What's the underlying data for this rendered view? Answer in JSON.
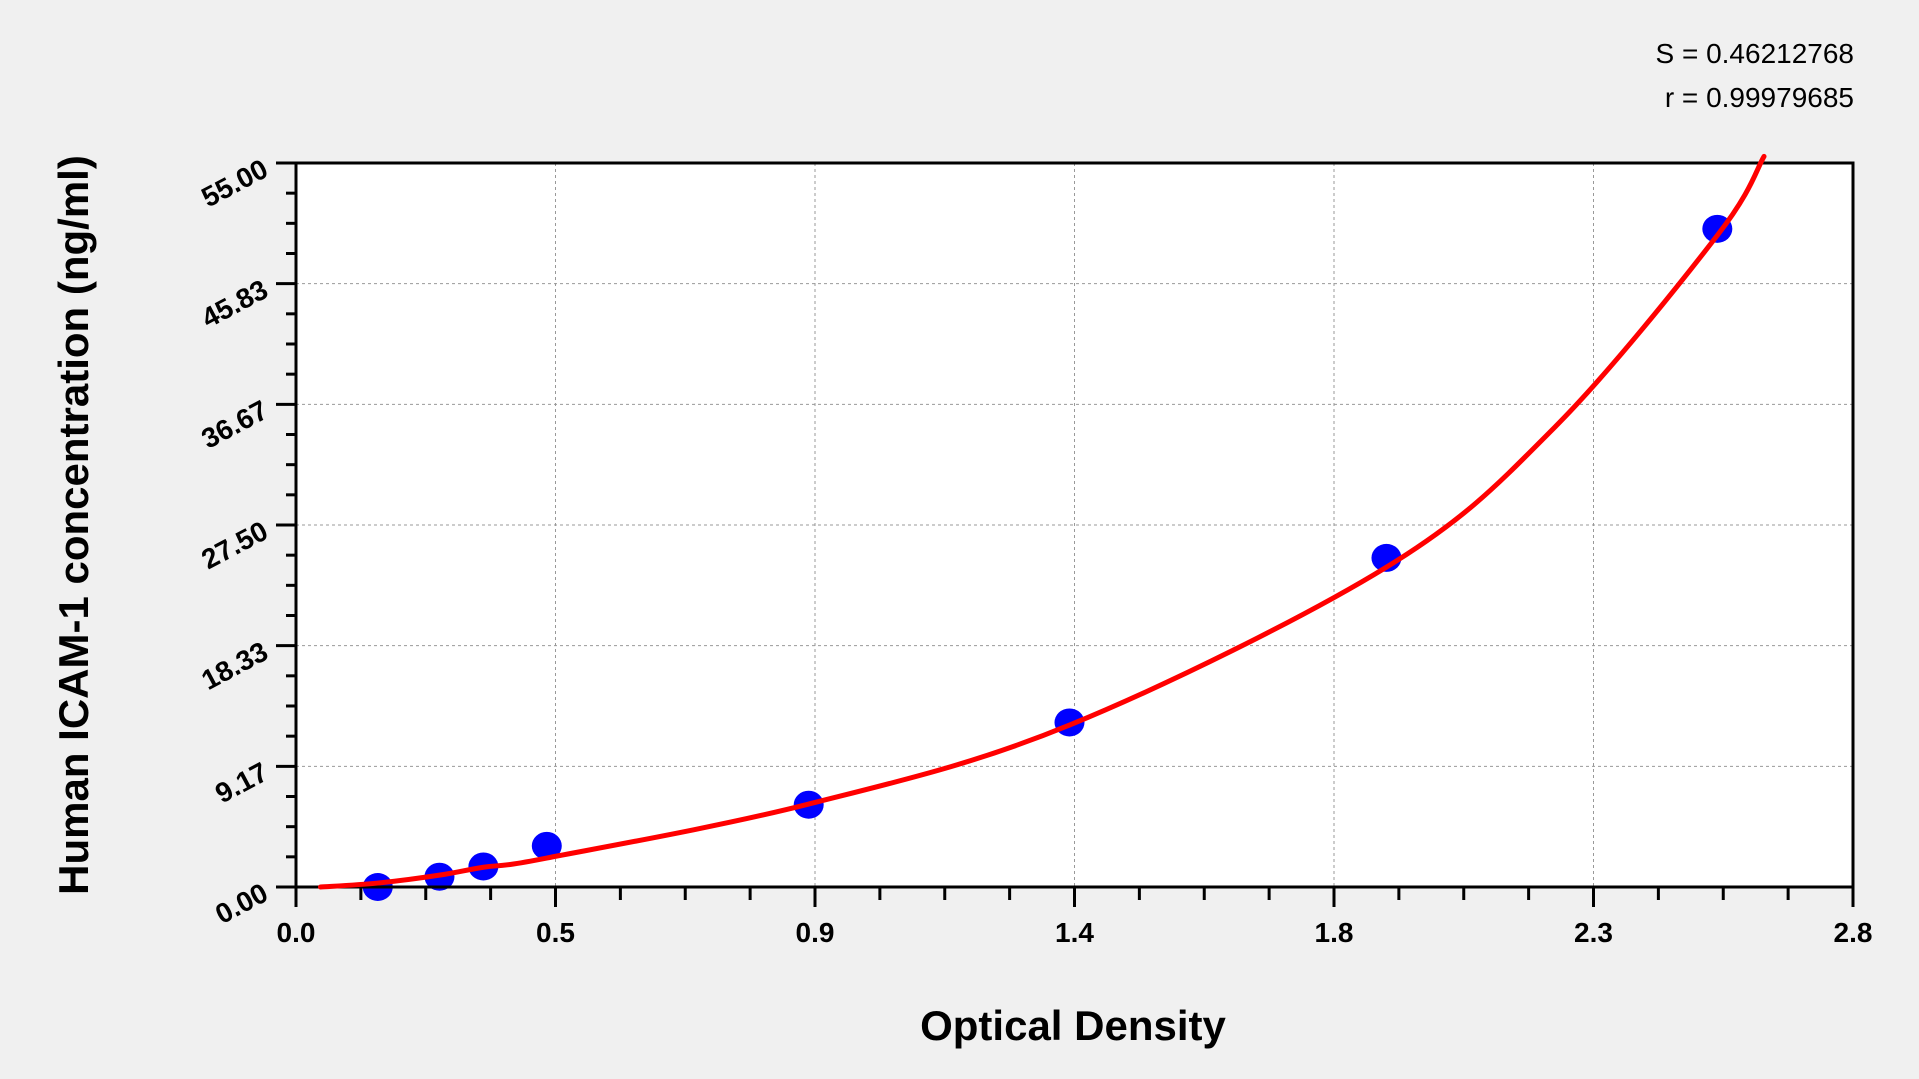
{
  "chart_data": {
    "type": "scatter",
    "xlabel": "Optical Density",
    "ylabel": "Human ICAM-1 concentration (ng/ml)",
    "xlim": [
      0,
      2.8
    ],
    "ylim": [
      0,
      55
    ],
    "x_tick_labels": [
      "0.0",
      "0.5",
      "0.9",
      "1.4",
      "1.8",
      "2.3",
      "2.8"
    ],
    "y_tick_labels": [
      "0.00",
      "9.17",
      "18.33",
      "27.50",
      "36.67",
      "45.83",
      "55.00"
    ],
    "grid": true,
    "annotations": {
      "s": "S = 0.46212768",
      "r": "r = 0.99979685"
    },
    "points": {
      "x": [
        0.147,
        0.258,
        0.337,
        0.451,
        0.922,
        1.391,
        1.961,
        2.556
      ],
      "y": [
        0,
        0.78,
        1.56,
        3.125,
        6.25,
        12.5,
        25,
        50
      ]
    },
    "fit_curve": {
      "x": [
        0.044,
        0.147,
        0.258,
        0.337,
        0.451,
        0.922,
        1.391,
        1.961,
        2.263,
        2.556,
        2.64
      ],
      "y": [
        0,
        0.3,
        0.9,
        1.5,
        2.2,
        6.3,
        12.3,
        24.3,
        34.9,
        49.5,
        55.5
      ]
    },
    "colors": {
      "points": "#0000ff",
      "curve": "#ff0000",
      "plot_bg": "#ffffff",
      "page_bg": "#f0f0f0"
    }
  }
}
